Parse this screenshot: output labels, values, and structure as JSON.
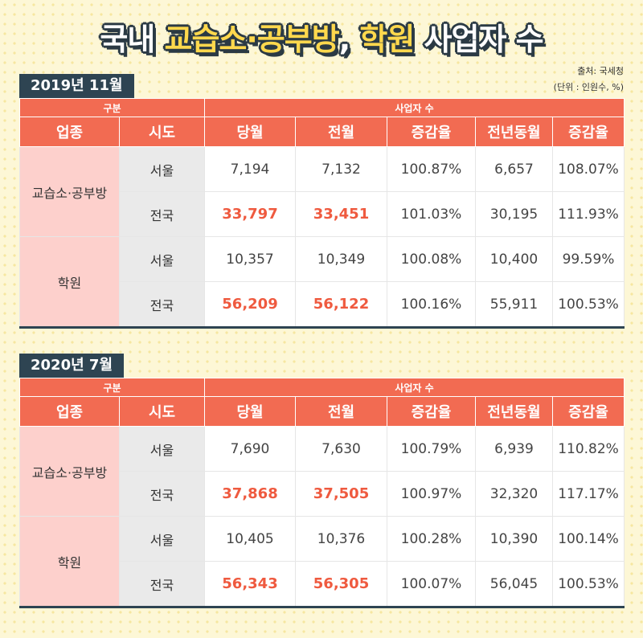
{
  "header": {
    "title_pre": "국내 ",
    "title_highlight": "교습소·공부방",
    "title_mid": ", ",
    "title_highlight2": "학원",
    "title_post": " 사업자 수",
    "source": "출처: 국세청",
    "unit": "(단위 : 인원수, %)"
  },
  "columns": {
    "group_label": "구분",
    "metric_label": "사업자 수",
    "industry": "업종",
    "region": "시도",
    "current": "당월",
    "previous": "전월",
    "mom_rate": "증감율",
    "last_year": "전년동월",
    "yoy_rate": "증감율"
  },
  "tables": [
    {
      "period": "2019년 11월",
      "groups": [
        {
          "category": "교습소·공부방",
          "rows": [
            {
              "region": "서울",
              "current": "7,194",
              "previous": "7,132",
              "mom_rate": "100.87%",
              "last_year": "6,657",
              "yoy_rate": "108.07%"
            },
            {
              "region": "전국",
              "current": "33,797",
              "previous": "33,451",
              "mom_rate": "101.03%",
              "last_year": "30,195",
              "yoy_rate": "111.93%"
            }
          ]
        },
        {
          "category": "학원",
          "rows": [
            {
              "region": "서울",
              "current": "10,357",
              "previous": "10,349",
              "mom_rate": "100.08%",
              "last_year": "10,400",
              "yoy_rate": "99.59%"
            },
            {
              "region": "전국",
              "current": "56,209",
              "previous": "56,122",
              "mom_rate": "100.16%",
              "last_year": "55,911",
              "yoy_rate": "100.53%"
            }
          ]
        }
      ]
    },
    {
      "period": "2020년 7월",
      "groups": [
        {
          "category": "교습소·공부방",
          "rows": [
            {
              "region": "서울",
              "current": "7,690",
              "previous": "7,630",
              "mom_rate": "100.79%",
              "last_year": "6,939",
              "yoy_rate": "110.82%"
            },
            {
              "region": "전국",
              "current": "37,868",
              "previous": "37,505",
              "mom_rate": "100.97%",
              "last_year": "32,320",
              "yoy_rate": "117.17%"
            }
          ]
        },
        {
          "category": "학원",
          "rows": [
            {
              "region": "서울",
              "current": "10,405",
              "previous": "10,376",
              "mom_rate": "100.28%",
              "last_year": "10,390",
              "yoy_rate": "100.14%"
            },
            {
              "region": "전국",
              "current": "56,343",
              "previous": "56,305",
              "mom_rate": "100.07%",
              "last_year": "56,045",
              "yoy_rate": "100.53%"
            }
          ]
        }
      ]
    }
  ]
}
